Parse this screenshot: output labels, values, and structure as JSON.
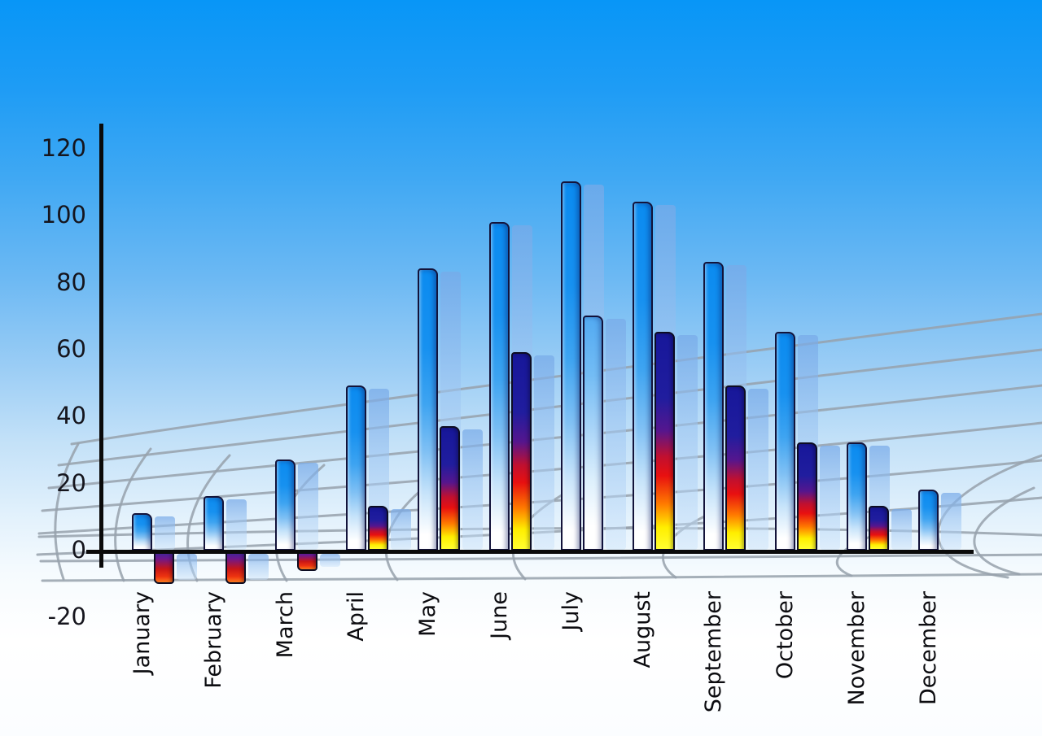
{
  "title": "",
  "chart_data": {
    "type": "bar",
    "title": "",
    "xlabel": "",
    "ylabel": "",
    "legend": "none",
    "grid": "decorative curved perspective net, gray, behind bars",
    "ylim": [
      -20,
      120
    ],
    "yticks": [
      120,
      100,
      80,
      60,
      40,
      20,
      0,
      -20
    ],
    "categories": [
      "January",
      "February",
      "March",
      "April",
      "May",
      "June",
      "July",
      "August",
      "September",
      "October",
      "November",
      "December"
    ],
    "series": [
      {
        "name": "series-1-blue-bars",
        "values": [
          11,
          16,
          27,
          49,
          84,
          98,
          110,
          104,
          86,
          65,
          32,
          18
        ]
      },
      {
        "name": "series-2-thermal-bars",
        "values": [
          -10,
          -10,
          -6,
          13,
          37,
          59,
          70,
          65,
          49,
          32,
          13,
          null
        ]
      }
    ],
    "series2_bar_styles": [
      "thermal-neg",
      "thermal-neg",
      "thermal-neg",
      "thermal",
      "thermal",
      "thermal",
      "blue-light",
      "thermal",
      "thermal",
      "thermal",
      "thermal",
      null
    ],
    "notes": "each bar has a translucent light-blue drop-shadow copy offset to the right; black axes; month labels rotated 90° reading bottom-to-top",
    "colors": {
      "sky_top": "#0896f7",
      "sky_bottom": "#ffffff",
      "bar_blue_top": "#0b8bf0",
      "bar_blue_bottom": "#ffffff",
      "bar_blue_light_top": "#52aaf2",
      "thermal_navy": "#17179a",
      "thermal_red": "#e81010",
      "thermal_yellow": "#ffee00",
      "negative_bar_top": "#2e2c9c",
      "negative_bar_bottom": "#ff7d1e",
      "shadow_bar": "#a5c8ef",
      "axis": "#0a0a0a",
      "grid_line": "#97a1ab",
      "label_text": "#0c0c10"
    }
  }
}
